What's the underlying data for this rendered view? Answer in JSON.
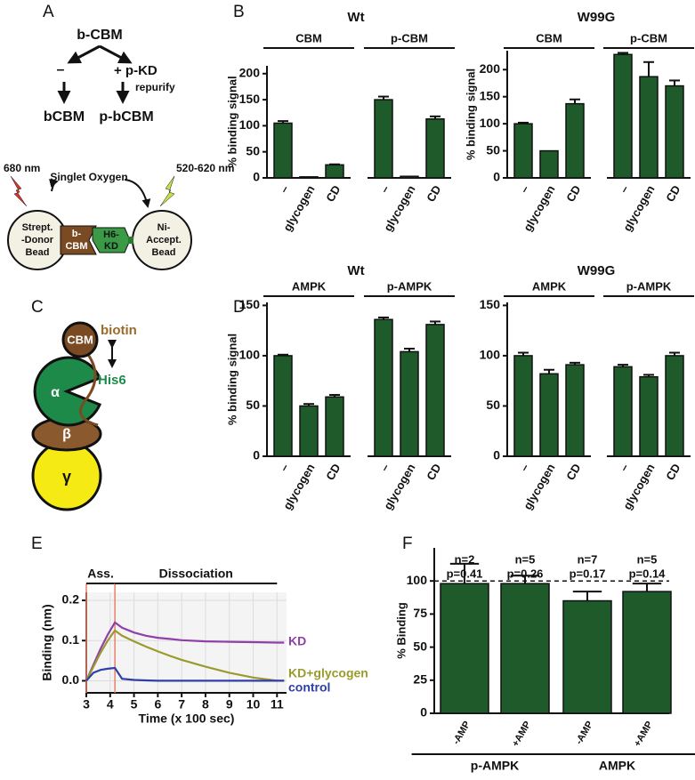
{
  "panel_labels": {
    "a": "A",
    "b": "B",
    "c": "C",
    "d": "D",
    "e": "E",
    "f": "F"
  },
  "scheme_a": {
    "top": "b-CBM",
    "minus": "–",
    "plus": "+ p-KD",
    "repurify": "repurify",
    "left": "bCBM",
    "right": "p-bCBM",
    "laser": "680 nm",
    "oxygen": "Singlet Oxygen",
    "emission": "520-620 nm",
    "donor": [
      "Strept.",
      "-Donor",
      "Bead"
    ],
    "cbm": [
      "b-",
      "CBM"
    ],
    "kd": [
      "H6-",
      "KD"
    ],
    "acceptor": [
      "Ni-",
      "Accept.",
      "Bead"
    ]
  },
  "scheme_c": {
    "cbm": "CBM",
    "biotin": "biotin",
    "alpha": "α",
    "his": "His6",
    "beta": "β",
    "gamma": "γ"
  },
  "chart_data": [
    {
      "type": "bar",
      "title": "Wt",
      "ylabel": "% binding signal",
      "ylim": [
        0,
        215
      ],
      "yticks": [
        0,
        50,
        100,
        150,
        200
      ],
      "color": "#1f5a2a",
      "groups": [
        {
          "name": "CBM",
          "categories": [
            "–",
            "glycogen",
            "CD"
          ],
          "values": [
            105,
            2,
            25
          ],
          "errors": [
            4,
            0,
            1
          ]
        },
        {
          "name": "p-CBM",
          "categories": [
            "–",
            "glycogen",
            "CD"
          ],
          "values": [
            150,
            3,
            113
          ],
          "errors": [
            6,
            0,
            5
          ]
        }
      ]
    },
    {
      "type": "bar",
      "title": "W99G",
      "ylabel": "% binding signal",
      "ylim": [
        0,
        235
      ],
      "yticks": [
        0,
        50,
        100,
        150,
        200
      ],
      "color": "#1f5a2a",
      "groups": [
        {
          "name": "CBM",
          "categories": [
            "–",
            "glycogen",
            "CD"
          ],
          "values": [
            100,
            50,
            137
          ],
          "errors": [
            2,
            0,
            8
          ]
        },
        {
          "name": "p-CBM",
          "categories": [
            "–",
            "glycogen",
            "CD"
          ],
          "values": [
            228,
            187,
            170
          ],
          "errors": [
            3,
            27,
            10
          ]
        }
      ]
    },
    {
      "type": "bar",
      "title": "Wt",
      "ylabel": "% binding signal",
      "ylim": [
        0,
        153
      ],
      "yticks": [
        0,
        50,
        100,
        150
      ],
      "color": "#1f5a2a",
      "groups": [
        {
          "name": "AMPK",
          "categories": [
            "–",
            "glycogen",
            "CD"
          ],
          "values": [
            100,
            50,
            59
          ],
          "errors": [
            1,
            2,
            2
          ]
        },
        {
          "name": "p-AMPK",
          "categories": [
            "–",
            "glycogen",
            "CD"
          ],
          "values": [
            136,
            104,
            131
          ],
          "errors": [
            2,
            3,
            3
          ]
        }
      ]
    },
    {
      "type": "bar",
      "title": "W99G",
      "ylim": [
        0,
        153
      ],
      "yticks": [
        0,
        50,
        100,
        150
      ],
      "color": "#1f5a2a",
      "groups": [
        {
          "name": "AMPK",
          "categories": [
            "–",
            "glycogen",
            "CD"
          ],
          "values": [
            100,
            82,
            91
          ],
          "errors": [
            3,
            4,
            2
          ]
        },
        {
          "name": "p-AMPK",
          "categories": [
            "–",
            "glycogen",
            "CD"
          ],
          "values": [
            89,
            79,
            100
          ],
          "errors": [
            2,
            2,
            3
          ]
        }
      ]
    },
    {
      "type": "line",
      "xlabel": "Time (x 100 sec)",
      "ylabel": "Binding (nm)",
      "grid": true,
      "xlim": [
        3,
        11.4
      ],
      "xticks": [
        3,
        4,
        5,
        6,
        7,
        8,
        9,
        10,
        11
      ],
      "ylim": [
        -0.03,
        0.22
      ],
      "yticks": [
        {
          "value": 0,
          "label": "0.0"
        },
        0.1,
        0.2
      ],
      "phases": [
        {
          "label": "Ass.",
          "range": [
            3,
            4.2
          ]
        },
        {
          "label": "Dissociation",
          "range": [
            4.2,
            11
          ]
        }
      ],
      "x": [
        3,
        3.3,
        3.6,
        3.9,
        4.2,
        4.5,
        5,
        5.5,
        6,
        6.5,
        7,
        8,
        9,
        10,
        11,
        11.3
      ],
      "series": [
        {
          "name": "KD",
          "color": "#8e3fa8",
          "values": [
            0,
            0.04,
            0.08,
            0.115,
            0.145,
            0.132,
            0.12,
            0.112,
            0.107,
            0.104,
            0.101,
            0.098,
            0.097,
            0.096,
            0.095,
            0.095
          ]
        },
        {
          "name": "KD+glycogen",
          "color": "#9a9a2e",
          "values": [
            0,
            0.035,
            0.07,
            0.1,
            0.125,
            0.112,
            0.098,
            0.085,
            0.073,
            0.062,
            0.052,
            0.035,
            0.02,
            0.008,
            0,
            0
          ]
        },
        {
          "name": "control",
          "color": "#2f3fa6",
          "values": [
            0,
            0.02,
            0.027,
            0.03,
            0.032,
            0.005,
            0.002,
            0.001,
            0,
            0,
            0,
            0,
            0,
            0,
            0,
            0
          ]
        }
      ]
    },
    {
      "type": "bar",
      "ylabel": "% Binding",
      "ylim": [
        0,
        125
      ],
      "yticks": [
        0,
        25,
        50,
        75,
        100
      ],
      "color": "#1f5a2a",
      "reference_line": 100,
      "groups": [
        {
          "name": "p-AMPK",
          "categories": [
            "-AMP",
            "+AMP"
          ],
          "values": [
            98,
            98
          ],
          "errors": [
            15,
            6
          ],
          "annotations": [
            [
              "n=2",
              "p=0.41"
            ],
            [
              "n=5",
              "p=0.26"
            ]
          ]
        },
        {
          "name": "AMPK",
          "categories": [
            "-AMP",
            "+AMP"
          ],
          "values": [
            85,
            92
          ],
          "errors": [
            7,
            6
          ],
          "annotations": [
            [
              "n=7",
              "p=0.17"
            ],
            [
              "n=5",
              "p=0.14"
            ]
          ]
        }
      ]
    }
  ]
}
